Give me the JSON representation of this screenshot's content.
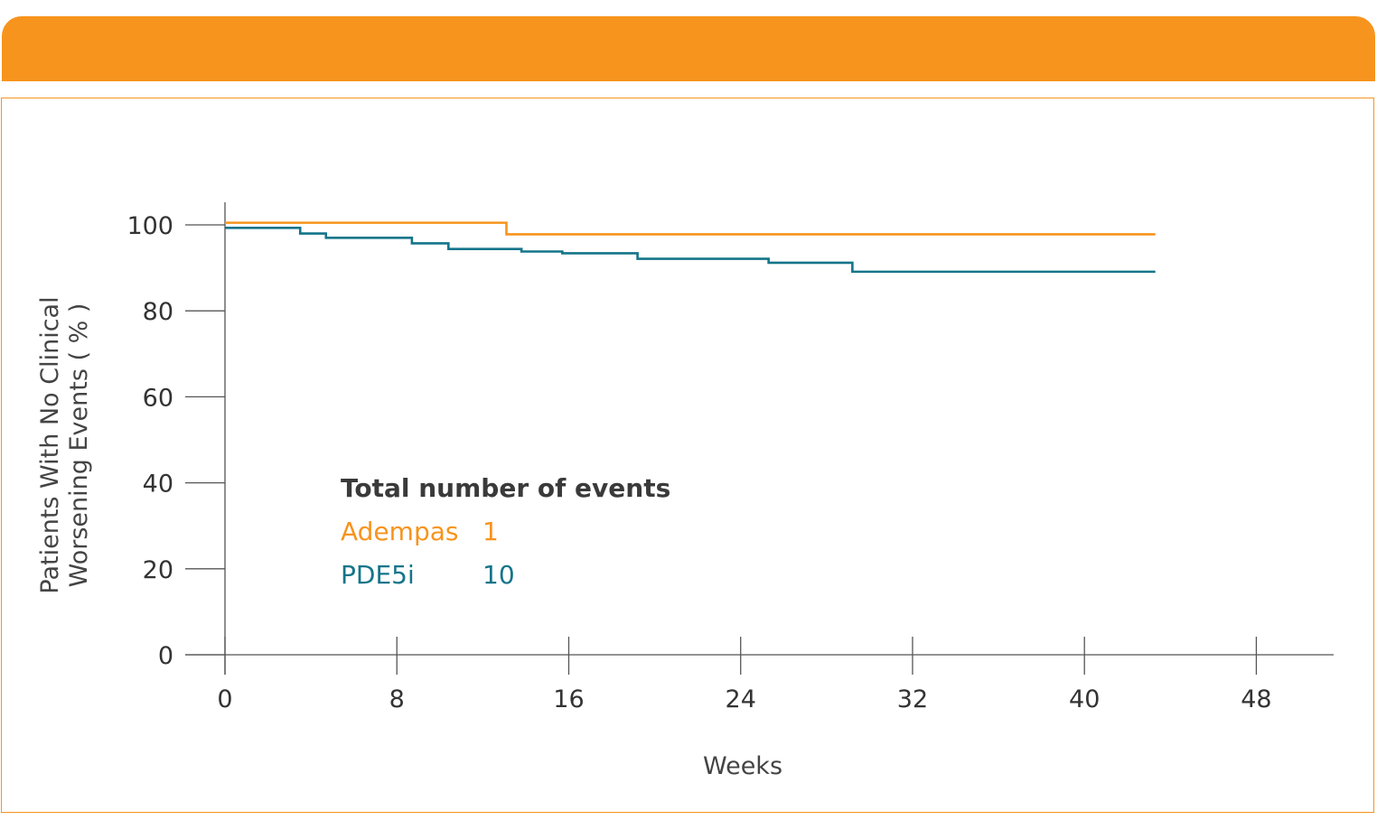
{
  "colors": {
    "header": "#F7941D",
    "axis": "#555555",
    "adempas": "#F7941D",
    "pde5i": "#14758A"
  },
  "chart_data": {
    "type": "line",
    "step": true,
    "xlabel": "Weeks",
    "ylabel_lines": [
      "Patients With No Clinical",
      "Worsening Events ( % )"
    ],
    "xlim": [
      0,
      52
    ],
    "ylim": [
      0,
      100
    ],
    "xticks": [
      0,
      8,
      16,
      24,
      32,
      40,
      48
    ],
    "yticks": [
      0,
      20,
      40,
      60,
      80,
      100
    ],
    "grid": false,
    "legend": {
      "title": "Total number of events",
      "placement": "center-left",
      "entries": [
        {
          "name": "Adempas",
          "value": "1",
          "color": "#F7941D"
        },
        {
          "name": "PDE5i",
          "value": "10",
          "color": "#14758A"
        }
      ]
    },
    "series": [
      {
        "name": "Adempas",
        "color": "#F7941D",
        "x": [
          0,
          13.1,
          43.3
        ],
        "y": [
          100.5,
          97.8,
          97.8
        ]
      },
      {
        "name": "PDE5i",
        "color": "#14758A",
        "x": [
          0,
          3.5,
          4.7,
          8.7,
          10.4,
          13.8,
          15.7,
          19.2,
          25.3,
          29.2,
          43.3
        ],
        "y": [
          99.3,
          98.0,
          97.0,
          95.7,
          94.4,
          93.8,
          93.4,
          92.1,
          91.2,
          89.1,
          89.1
        ]
      }
    ]
  }
}
